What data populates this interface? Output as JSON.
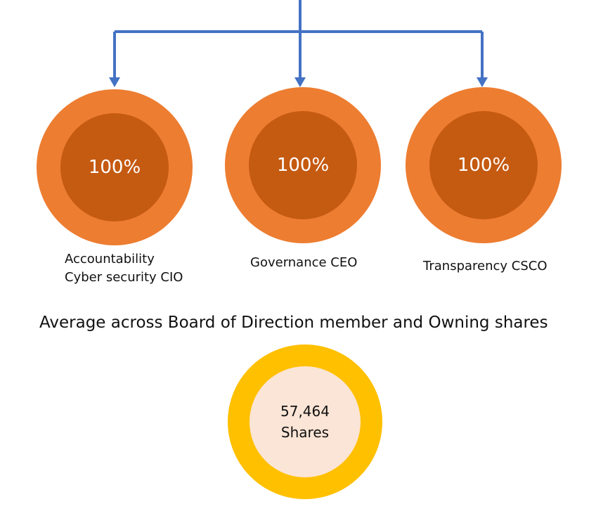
{
  "roles": [
    {
      "value": "100%",
      "caption_lines": [
        "Accountability",
        "Cyber security CIO"
      ]
    },
    {
      "value": "100%",
      "caption_lines": [
        "Governance CEO"
      ]
    },
    {
      "value": "100%",
      "caption_lines": [
        "Transparency CSCO"
      ]
    }
  ],
  "summary": {
    "heading": "Average across Board of Direction member and Owning shares",
    "shares_value": "57,464",
    "shares_unit": "Shares"
  },
  "colors": {
    "connector": "#4472C4",
    "ring_outer": "#ED7D31",
    "ring_inner": "#C55A11",
    "shares_outer": "#FFC000",
    "shares_inner": "#FBE5D6"
  }
}
